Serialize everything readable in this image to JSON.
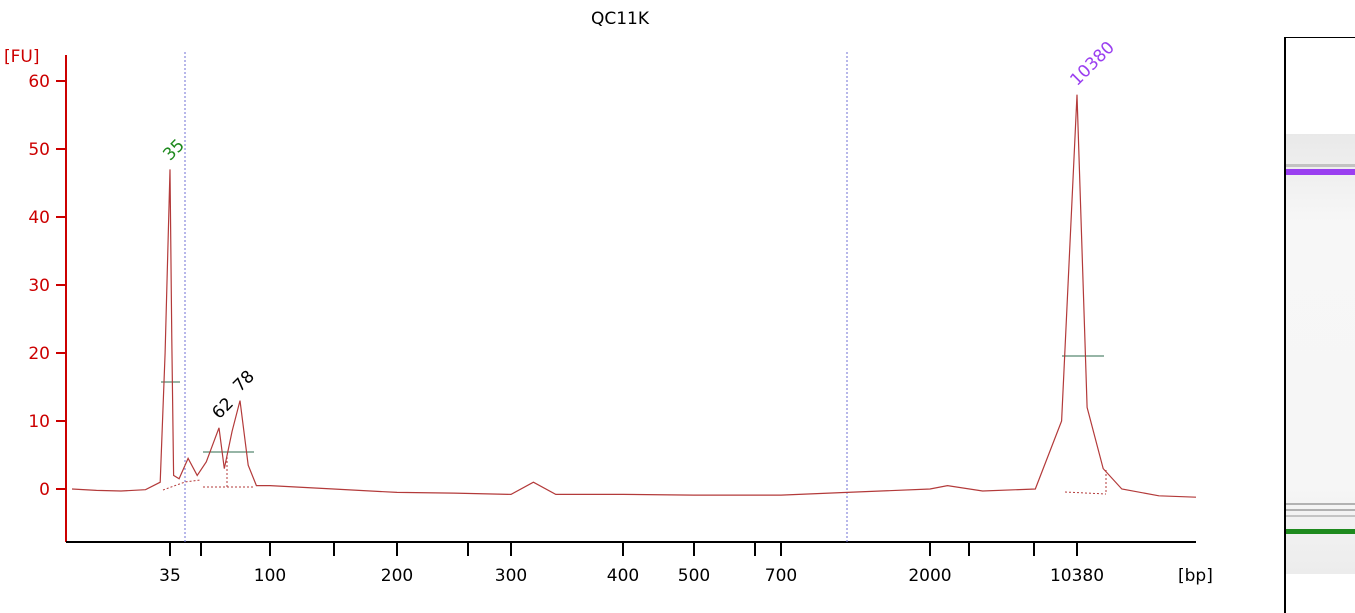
{
  "chart_data": {
    "type": "line",
    "title": "QC11K",
    "ylabel": "[FU]",
    "xlabel": "[bp]",
    "ylim": [
      -8,
      62
    ],
    "yticks": [
      0,
      10,
      20,
      30,
      40,
      50,
      60
    ],
    "x_tick_labels": [
      "35",
      "100",
      "200",
      "300",
      "400",
      "500",
      "700",
      "2000",
      "10380"
    ],
    "series": [
      {
        "color": "#b33a3a",
        "points": [
          {
            "x": "15",
            "y": 0.0
          },
          {
            "x": "20",
            "y": -0.2
          },
          {
            "x": "25",
            "y": -0.3
          },
          {
            "x": "30",
            "y": -0.1
          },
          {
            "x": "33",
            "y": 1.0
          },
          {
            "x": "34",
            "y": 20.0
          },
          {
            "x": "35",
            "y": 47.0
          },
          {
            "x": "36",
            "y": 22.0
          },
          {
            "x": "37",
            "y": 2.0
          },
          {
            "x": "40",
            "y": 1.5
          },
          {
            "x": "45",
            "y": 4.5
          },
          {
            "x": "50",
            "y": 2.0
          },
          {
            "x": "55",
            "y": 4.0
          },
          {
            "x": "62",
            "y": 9.0
          },
          {
            "x": "66",
            "y": 3.0
          },
          {
            "x": "72",
            "y": 8.5
          },
          {
            "x": "78",
            "y": 13.0
          },
          {
            "x": "84",
            "y": 3.5
          },
          {
            "x": "90",
            "y": 0.5
          },
          {
            "x": "100",
            "y": 0.5
          },
          {
            "x": "150",
            "y": 0.0
          },
          {
            "x": "200",
            "y": -0.5
          },
          {
            "x": "250",
            "y": -0.6
          },
          {
            "x": "300",
            "y": -0.8
          },
          {
            "x": "320",
            "y": 1.0
          },
          {
            "x": "340",
            "y": -0.8
          },
          {
            "x": "400",
            "y": -0.8
          },
          {
            "x": "500",
            "y": -0.9
          },
          {
            "x": "700",
            "y": -0.9
          },
          {
            "x": "1000",
            "y": -0.5
          },
          {
            "x": "2000",
            "y": 0.0
          },
          {
            "x": "3000",
            "y": 0.5
          },
          {
            "x": "5000",
            "y": -0.3
          },
          {
            "x": "8000",
            "y": 0.0
          },
          {
            "x": "9500",
            "y": 10.0
          },
          {
            "x": "10380",
            "y": 58.0
          },
          {
            "x": "11200",
            "y": 12.0
          },
          {
            "x": "12500",
            "y": 3.0
          },
          {
            "x": "14000",
            "y": 0.0
          },
          {
            "x": "17000",
            "y": -1.0
          },
          {
            "x": "20000",
            "y": -1.2
          }
        ]
      }
    ],
    "peak_labels": [
      {
        "label": "35",
        "x": "35",
        "y": 47,
        "color": "#1e8a1e"
      },
      {
        "label": "62",
        "x": "62",
        "y": 9,
        "color": "#000000"
      },
      {
        "label": "78",
        "x": "78",
        "y": 13,
        "color": "#000000"
      },
      {
        "label": "10380",
        "x": "10380",
        "y": 58,
        "color": "#9a3ff0"
      }
    ],
    "grid": false,
    "legend": "none"
  },
  "gel": {
    "upper_marker_color": "#9a3ff0",
    "lower_marker_color": "#1e8a1e",
    "band_color": "#707070"
  }
}
